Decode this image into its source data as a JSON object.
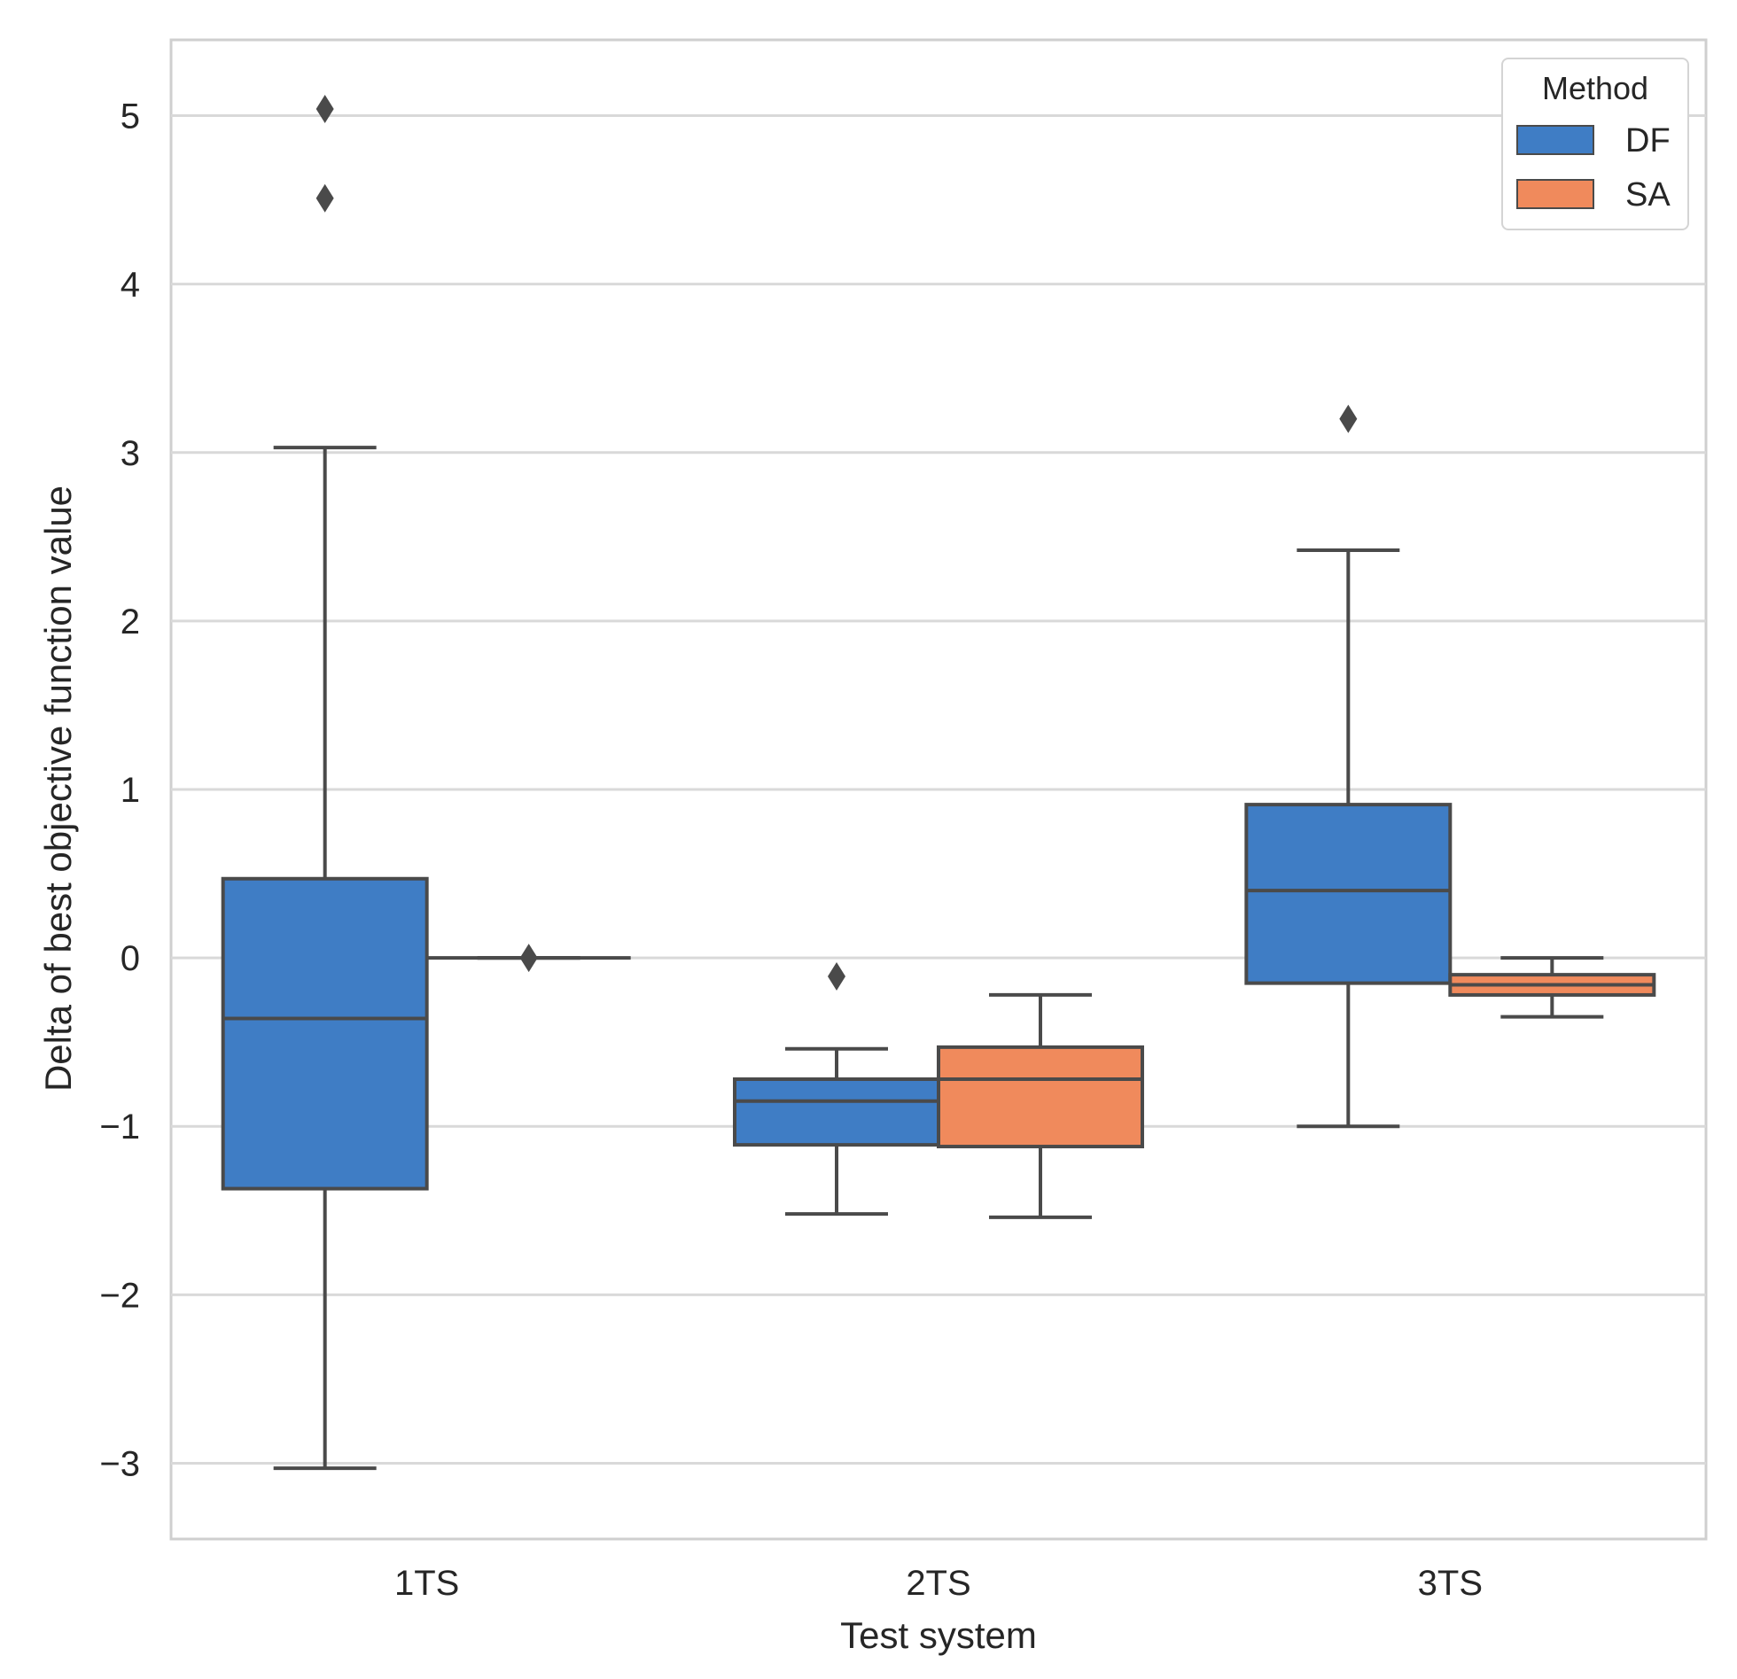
{
  "chart_data": {
    "type": "boxplot",
    "xlabel": "Test system",
    "ylabel": "Delta of best objective function value",
    "categories": [
      "1TS",
      "2TS",
      "3TS"
    ],
    "ylim": [
      -3.45,
      5.45
    ],
    "yticks": [
      -3,
      -2,
      -1,
      0,
      1,
      2,
      3,
      4,
      5
    ],
    "ytick_labels": [
      "−3",
      "−2",
      "−1",
      "0",
      "1",
      "2",
      "3",
      "4",
      "5"
    ],
    "grid": true,
    "legend": {
      "title": "Method",
      "position": "top-right"
    },
    "series": [
      {
        "name": "DF",
        "color": "#3f7dc5",
        "boxes": [
          {
            "category": "1TS",
            "whisker_low": -3.03,
            "q1": -1.37,
            "median": -0.36,
            "q3": 0.47,
            "whisker_high": 3.03,
            "outliers": [
              4.51,
              5.04
            ]
          },
          {
            "category": "2TS",
            "whisker_low": -1.52,
            "q1": -1.11,
            "median": -0.85,
            "q3": -0.72,
            "whisker_high": -0.54,
            "outliers": [
              -0.11
            ]
          },
          {
            "category": "3TS",
            "whisker_low": -1.0,
            "q1": -0.15,
            "median": 0.4,
            "q3": 0.91,
            "whisker_high": 2.42,
            "outliers": [
              3.2
            ]
          }
        ]
      },
      {
        "name": "SA",
        "color": "#f08a5c",
        "boxes": [
          {
            "category": "1TS",
            "whisker_low": 0.0,
            "q1": 0.0,
            "median": 0.0,
            "q3": 0.0,
            "whisker_high": 0.0,
            "outliers": [
              0.0
            ]
          },
          {
            "category": "2TS",
            "whisker_low": -1.54,
            "q1": -1.12,
            "median": -0.72,
            "q3": -0.53,
            "whisker_high": -0.22,
            "outliers": []
          },
          {
            "category": "3TS",
            "whisker_low": -0.35,
            "q1": -0.22,
            "median": -0.16,
            "q3": -0.1,
            "whisker_high": 0.0,
            "outliers": []
          }
        ]
      }
    ]
  }
}
